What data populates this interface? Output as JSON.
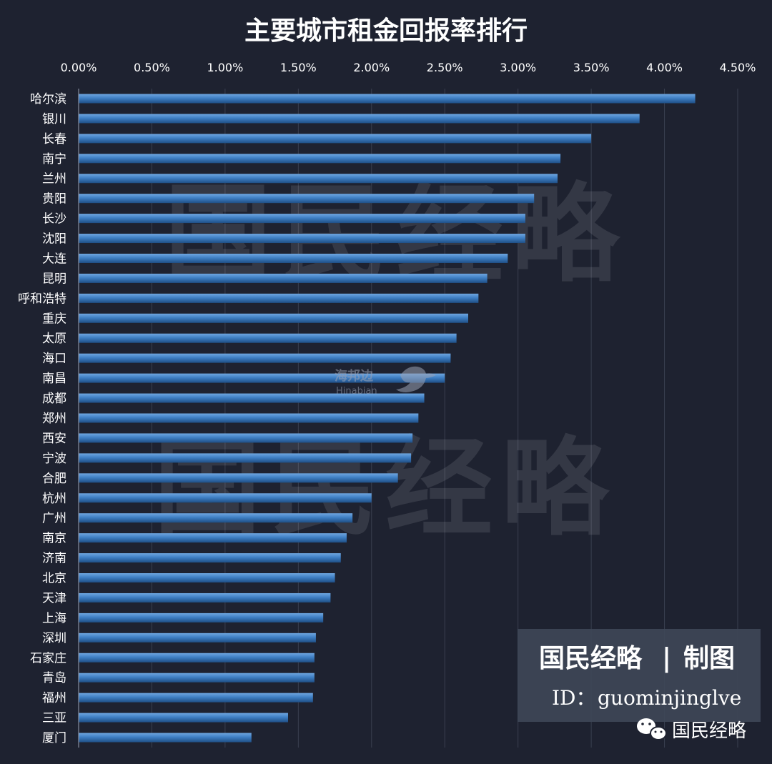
{
  "chart_data": {
    "type": "bar",
    "orientation": "horizontal",
    "title": "主要城市租金回报率排行",
    "xlabel": "",
    "ylabel": "",
    "xlim": [
      0,
      0.045
    ],
    "x_ticks": [
      "0.00%",
      "0.50%",
      "1.00%",
      "1.50%",
      "2.00%",
      "2.50%",
      "3.00%",
      "3.50%",
      "4.00%",
      "4.50%"
    ],
    "x_axis_position": "top",
    "grid": true,
    "categories": [
      "哈尔滨",
      "银川",
      "长春",
      "南宁",
      "兰州",
      "贵阳",
      "长沙",
      "沈阳",
      "大连",
      "昆明",
      "呼和浩特",
      "重庆",
      "太原",
      "海口",
      "南昌",
      "成都",
      "郑州",
      "西安",
      "宁波",
      "合肥",
      "杭州",
      "广州",
      "南京",
      "济南",
      "北京",
      "天津",
      "上海",
      "深圳",
      "石家庄",
      "青岛",
      "福州",
      "三亚",
      "厦门"
    ],
    "values": [
      0.0421,
      0.0383,
      0.035,
      0.0329,
      0.0327,
      0.0311,
      0.0305,
      0.0305,
      0.0293,
      0.0279,
      0.0273,
      0.0266,
      0.0258,
      0.0254,
      0.025,
      0.0236,
      0.0232,
      0.0228,
      0.0227,
      0.0218,
      0.02,
      0.0187,
      0.0183,
      0.0179,
      0.0175,
      0.0172,
      0.0167,
      0.0162,
      0.0161,
      0.0161,
      0.016,
      0.0143,
      0.0118
    ]
  },
  "watermarks": {
    "main": "国民经略",
    "brand_cn": "海邦边",
    "brand_en": "Hinabian"
  },
  "stamp": {
    "title": "国民经略",
    "separator": "|",
    "suffix": "制图",
    "id_label": "ID：",
    "id_value": "guominjinglve"
  },
  "wechat": {
    "icon": "wechat-icon",
    "label": "国民经略"
  },
  "colors": {
    "background": "#1e2230",
    "bar": "#3f7fc4",
    "bar_dark": "#24578f",
    "grid": "#3a4050",
    "text": "#ffffff",
    "stamp_bg": "#3e4657"
  }
}
